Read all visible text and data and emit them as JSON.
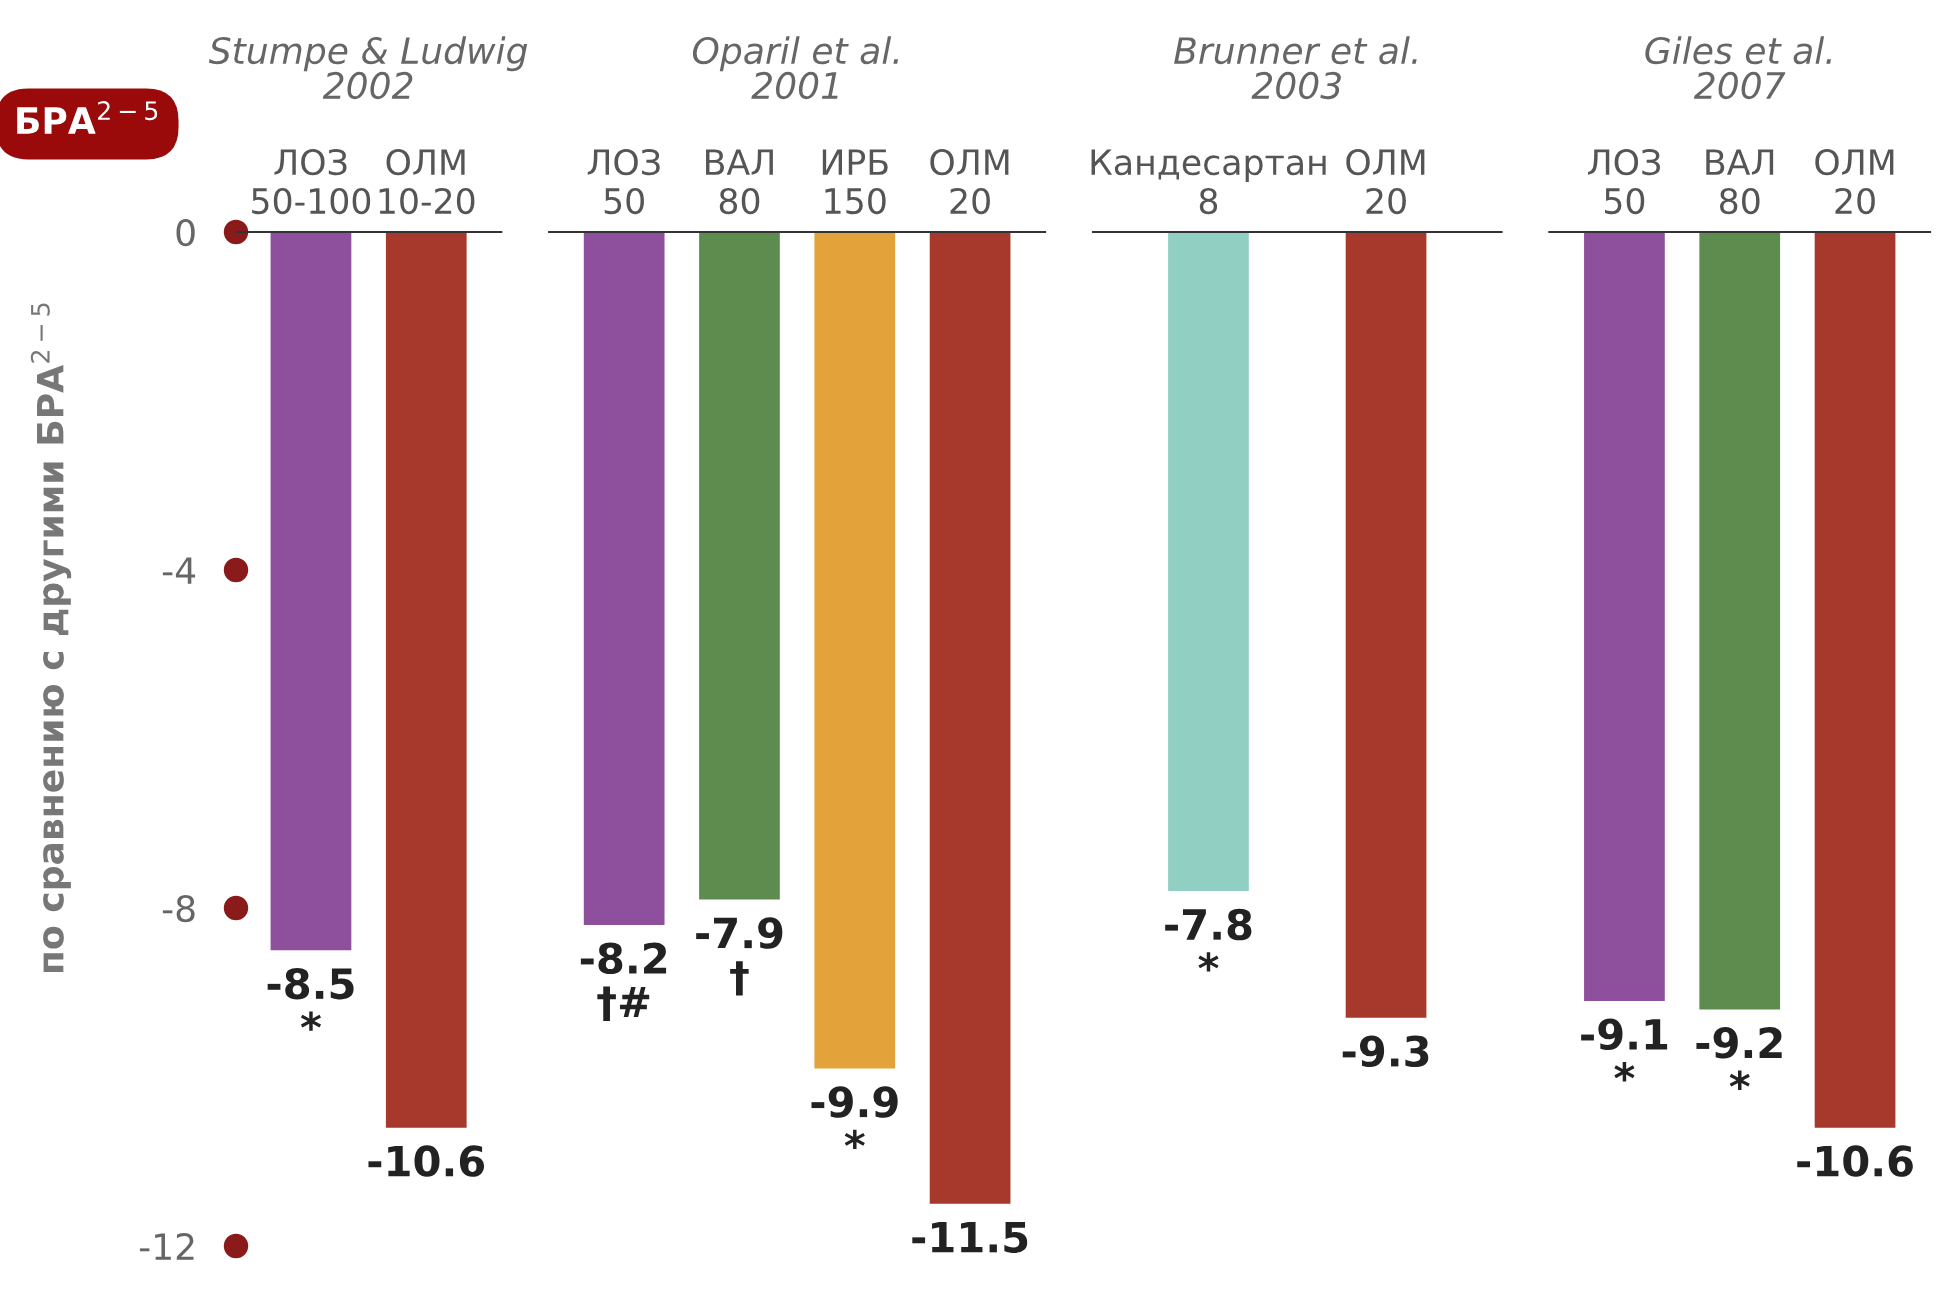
{
  "chart_data": [
    {
      "type": "bar",
      "title": "Stumpe & Ludwig\n2002",
      "ylabel": "по сравнению с другими БРА$^{2−5}$",
      "annotations": [
        "БРА$^{2−5}$"
      ],
      "categories": [
        "ЛОЗ\n50-100",
        "ОЛМ\n10-20"
      ],
      "values": [
        -8.5,
        -10.6
      ],
      "colors": [
        "#8e4f9c",
        "#a6392b"
      ],
      "value_labels": [
        "-8.5\n*",
        "-10.6"
      ],
      "ylim": [
        -12,
        0
      ],
      "yticks": [
        0,
        -4,
        -8,
        -12
      ],
      "grid": false
    },
    {
      "type": "bar",
      "title": "Oparil et al.\n2001",
      "categories": [
        "ЛОЗ\n50",
        "ВАЛ\n80",
        "ИРБ\n150",
        "ОЛМ\n20"
      ],
      "values": [
        -8.2,
        -7.9,
        -9.9,
        -11.5
      ],
      "colors": [
        "#8e4f9c",
        "#5e8b4e",
        "#e3a23a",
        "#a6392b"
      ],
      "value_labels": [
        "-8.2\n†#",
        "-7.9\n†",
        "-9.9\n*",
        "-11.5"
      ],
      "ylim": [
        -12,
        0
      ],
      "tick_labels": "x",
      "grid": false
    },
    {
      "type": "bar",
      "title": "Brunner et al.\n2003",
      "categories": [
        "Кандесартан\n8",
        "ОЛМ\n20"
      ],
      "values": [
        -7.8,
        -9.3
      ],
      "colors": [
        "#92cfc3",
        "#a6392b"
      ],
      "value_labels": [
        "-7.8\n*",
        "-9.3"
      ],
      "ylim": [
        -12,
        0
      ],
      "tick_labels": "x",
      "grid": false
    },
    {
      "type": "bar",
      "title": "Giles et al.\n2007",
      "categories": [
        "ЛОЗ\n50",
        "ВАЛ\n80",
        "ОЛМ\n20"
      ],
      "values": [
        -9.1,
        -9.2,
        -10.6
      ],
      "colors": [
        "#8e4f9c",
        "#5e8b4e",
        "#a6392b"
      ],
      "value_labels": [
        "-9.1\n*",
        "-9.2\n*",
        "-10.6"
      ],
      "ylim": [
        -12,
        0
      ],
      "tick_labels": "x",
      "grid": false
    }
  ]
}
